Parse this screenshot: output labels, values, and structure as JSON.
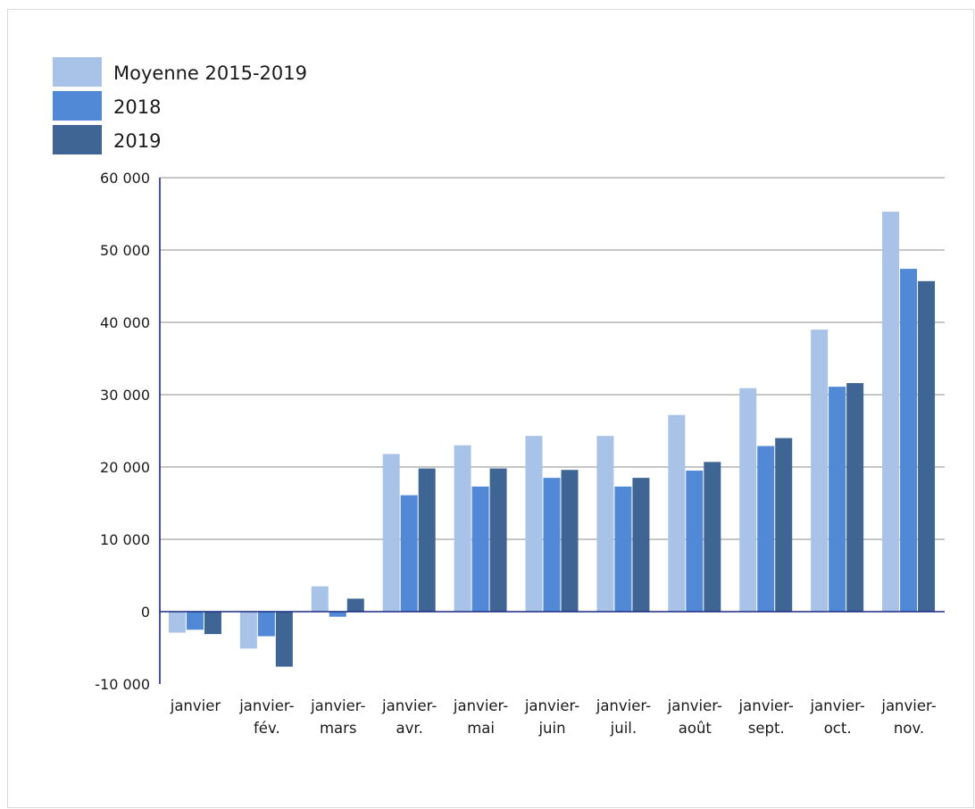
{
  "chart_data": {
    "type": "bar",
    "categories": [
      [
        "janvier"
      ],
      [
        "janvier-",
        "fév."
      ],
      [
        "janvier-",
        "mars"
      ],
      [
        "janvier-",
        "avr."
      ],
      [
        "janvier-",
        "mai"
      ],
      [
        "janvier-",
        "juin"
      ],
      [
        "janvier-",
        "juil."
      ],
      [
        "janvier-",
        "août"
      ],
      [
        "janvier-",
        "sept."
      ],
      [
        "janvier-",
        "oct."
      ],
      [
        "janvier-",
        "nov."
      ]
    ],
    "series": [
      {
        "name": "Moyenne 2015-2019",
        "color": "#a9c3e8",
        "values": [
          -2900,
          -5100,
          3500,
          21800,
          23000,
          24300,
          24300,
          27200,
          30900,
          39000,
          55300
        ]
      },
      {
        "name": "2018",
        "color": "#5289d6",
        "values": [
          -2500,
          -3400,
          -700,
          16100,
          17300,
          18500,
          17300,
          19500,
          22900,
          31100,
          47400
        ]
      },
      {
        "name": "2019",
        "color": "#3e6593",
        "values": [
          -3100,
          -7600,
          1800,
          19800,
          19800,
          19600,
          18500,
          20700,
          24000,
          31600,
          45700
        ]
      }
    ],
    "ylim": [
      -10000,
      60000
    ],
    "yticks": [
      -10000,
      0,
      10000,
      20000,
      30000,
      40000,
      50000,
      60000
    ],
    "ytick_labels": [
      "-10 000",
      "0",
      "10 000",
      "20 000",
      "30 000",
      "40 000",
      "50 000",
      "60 000"
    ],
    "grid": true,
    "legend_position": "top-left",
    "title": "",
    "xlabel": "",
    "ylabel": ""
  }
}
